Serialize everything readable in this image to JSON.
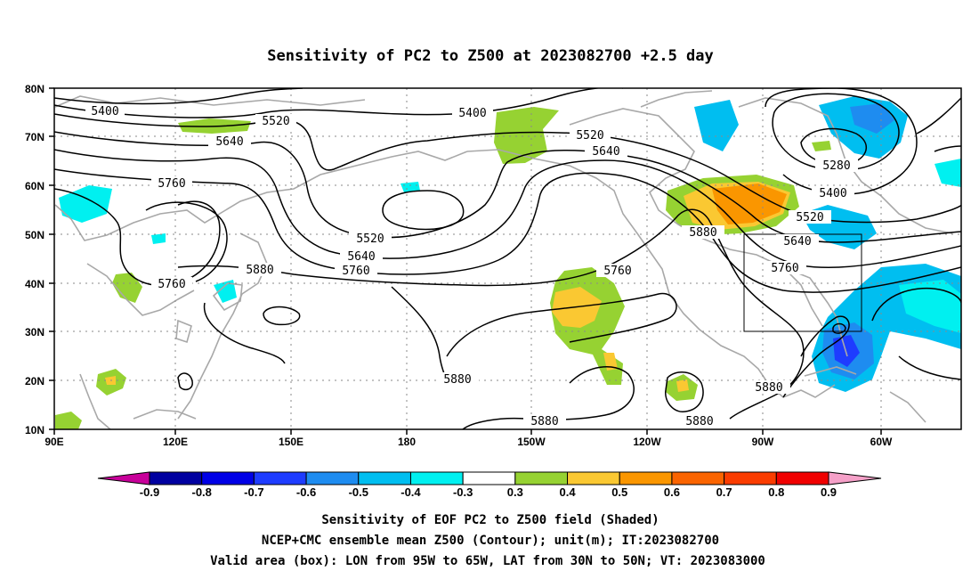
{
  "title": "Sensitivity of PC2 to Z500 at 2023082700 +2.5 day",
  "map": {
    "lat_labels": [
      "80N",
      "70N",
      "60N",
      "50N",
      "40N",
      "30N",
      "20N",
      "10N"
    ],
    "lon_labels": [
      "90E",
      "120E",
      "150E",
      "180",
      "150W",
      "120W",
      "90W",
      "60W"
    ],
    "box": {
      "lon_from": "95W",
      "lon_to": "65W",
      "lat_from": "30N",
      "lat_to": "50N"
    }
  },
  "contour_labels": {
    "c5400a": "5400",
    "c5400b": "5400",
    "c5400c": "5400",
    "c5520a": "5520",
    "c5520b": "5520",
    "c5520c": "5520",
    "c5520d": "5520",
    "c5640a": "5640",
    "c5640b": "5640",
    "c5640c": "5640",
    "c5640d": "5640",
    "c5760a": "5760",
    "c5760b": "5760",
    "c5760c": "5760",
    "c5760d": "5760",
    "c5760e": "5760",
    "c5880a": "5880",
    "c5880b": "5880",
    "c5880c": "5880",
    "c5880d": "5880",
    "c5880e": "5880",
    "c5880f": "5880",
    "c5280": "5280"
  },
  "colorbar": {
    "labels": [
      "-0.9",
      "-0.8",
      "-0.7",
      "-0.6",
      "-0.5",
      "-0.4",
      "-0.3",
      "0.3",
      "0.4",
      "0.5",
      "0.6",
      "0.7",
      "0.8",
      "0.9"
    ],
    "colors": {
      "low_end": "#c8009a",
      "bins": [
        "#0000a0",
        "#0000e6",
        "#1e3cff",
        "#1e8cf0",
        "#00bef0",
        "#00f0f0",
        "#ffffff",
        "#96d232",
        "#fac832",
        "#fa9600",
        "#fa6400",
        "#fa3c00",
        "#f00000"
      ],
      "high_end": "#f5a0c8"
    }
  },
  "caption": {
    "line1": "Sensitivity of EOF PC2 to Z500 field (Shaded)",
    "line2": "NCEP+CMC ensemble mean Z500 (Contour); unit(m); IT:2023082700",
    "line3": "Valid area (box): LON from 95W to 65W, LAT from 30N to 50N; VT: 2023083000"
  }
}
